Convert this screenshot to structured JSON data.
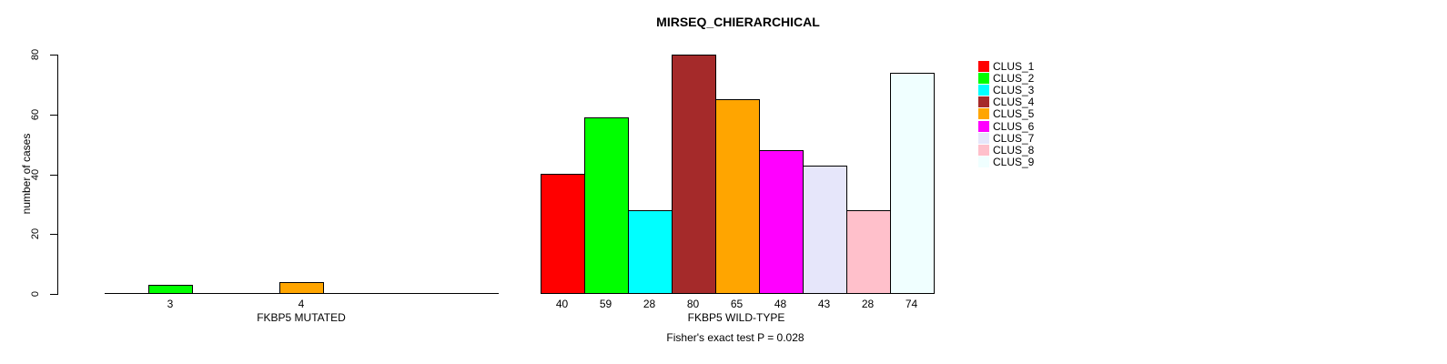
{
  "page": {
    "background": "#FFFFFF"
  },
  "chart_data": {
    "type": "bar",
    "title": "MIRSEQ_CHIERARCHICAL",
    "ylabel": "number of cases",
    "ylim": [
      0,
      80
    ],
    "yticks": [
      0,
      20,
      40,
      60,
      80
    ],
    "grid": false,
    "legend_position": "right",
    "footnote": "Fisher's exact test P = 0.028",
    "palette": [
      "#FF0000",
      "#00FF00",
      "#00FFFF",
      "#A52A2A",
      "#FFA500",
      "#FF00FF",
      "#E6E6FA",
      "#FFC0CB",
      "#F0FFFF"
    ],
    "legend": {
      "entries": [
        "CLUS_1",
        "CLUS_2",
        "CLUS_3",
        "CLUS_4",
        "CLUS_5",
        "CLUS_6",
        "CLUS_7",
        "CLUS_8",
        "CLUS_9"
      ]
    },
    "panels": [
      {
        "xlabel": "FKBP5 MUTATED",
        "categories": [
          "CLUS_1",
          "CLUS_2",
          "CLUS_3",
          "CLUS_4",
          "CLUS_5",
          "CLUS_6",
          "CLUS_7",
          "CLUS_8",
          "CLUS_9"
        ],
        "values": [
          0,
          3,
          0,
          0,
          4,
          0,
          0,
          0,
          0
        ],
        "bar_labels": [
          "",
          "3",
          "",
          "",
          "4",
          "",
          "",
          "",
          ""
        ]
      },
      {
        "xlabel": "FKBP5 WILD-TYPE",
        "categories": [
          "CLUS_1",
          "CLUS_2",
          "CLUS_3",
          "CLUS_4",
          "CLUS_5",
          "CLUS_6",
          "CLUS_7",
          "CLUS_8",
          "CLUS_9"
        ],
        "values": [
          40,
          59,
          28,
          80,
          65,
          48,
          43,
          28,
          74
        ],
        "bar_labels": [
          "40",
          "59",
          "28",
          "80",
          "65",
          "48",
          "43",
          "28",
          "74"
        ]
      }
    ]
  }
}
